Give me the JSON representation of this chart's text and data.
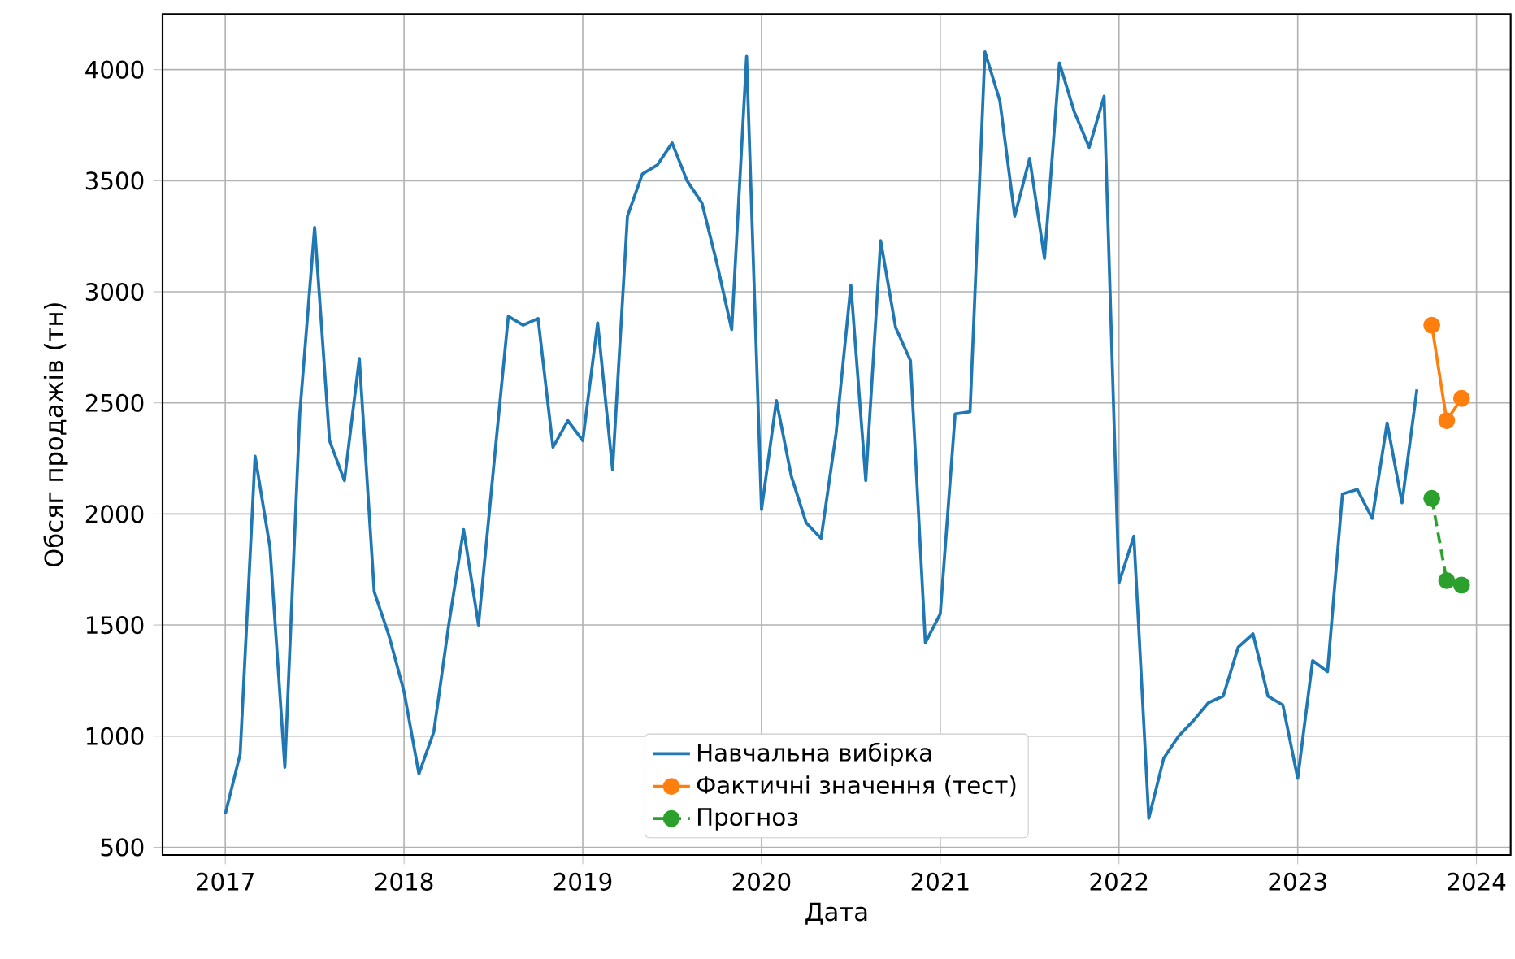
{
  "chart_data": {
    "type": "line",
    "xlabel": "Дата",
    "ylabel": "Обсяг продажів (тн)",
    "xlim": [
      "2016-08-25",
      "2024-03-10"
    ],
    "ylim": [
      465,
      4250
    ],
    "xticks": [
      "2017",
      "2018",
      "2019",
      "2020",
      "2021",
      "2022",
      "2023",
      "2024"
    ],
    "yticks": [
      500,
      1000,
      1500,
      2000,
      2500,
      3000,
      3500,
      4000
    ],
    "grid": true,
    "legend": "bottom",
    "series": [
      {
        "name": "Навчальна вибірка",
        "color": "#1f77b4",
        "marker": "none",
        "line_style": "solid",
        "x": [
          "2017-01",
          "2017-02",
          "2017-03",
          "2017-04",
          "2017-05",
          "2017-06",
          "2017-07",
          "2017-08",
          "2017-09",
          "2017-10",
          "2017-11",
          "2017-12",
          "2018-01",
          "2018-02",
          "2018-03",
          "2018-04",
          "2018-05",
          "2018-06",
          "2018-07",
          "2018-08",
          "2018-09",
          "2018-10",
          "2018-11",
          "2018-12",
          "2019-01",
          "2019-02",
          "2019-03",
          "2019-04",
          "2019-05",
          "2019-06",
          "2019-07",
          "2019-08",
          "2019-09",
          "2019-10",
          "2019-11",
          "2019-12",
          "2020-01",
          "2020-02",
          "2020-03",
          "2020-04",
          "2020-05",
          "2020-06",
          "2020-07",
          "2020-08",
          "2020-09",
          "2020-10",
          "2020-11",
          "2020-12",
          "2021-01",
          "2021-02",
          "2021-03",
          "2021-04",
          "2021-05",
          "2021-06",
          "2021-07",
          "2021-08",
          "2021-09",
          "2021-10",
          "2021-11",
          "2021-12",
          "2022-01",
          "2022-02",
          "2022-03",
          "2022-04",
          "2022-05",
          "2022-06",
          "2022-07",
          "2022-08",
          "2022-09",
          "2022-10",
          "2022-11",
          "2022-12",
          "2023-01",
          "2023-02",
          "2023-03",
          "2023-04",
          "2023-05",
          "2023-06",
          "2023-07",
          "2023-08",
          "2023-09"
        ],
        "values": [
          650,
          920,
          2260,
          1850,
          860,
          2450,
          3290,
          2330,
          2150,
          2700,
          1650,
          1450,
          1200,
          830,
          1020,
          1500,
          1930,
          1500,
          2200,
          2890,
          2850,
          2880,
          2300,
          2420,
          2330,
          2860,
          2200,
          3340,
          3530,
          3570,
          3670,
          3500,
          3400,
          3130,
          2830,
          4060,
          2020,
          2510,
          2170,
          1960,
          1890,
          2360,
          3030,
          2150,
          3230,
          2840,
          2690,
          1420,
          1550,
          2450,
          2460,
          4080,
          3860,
          3340,
          3600,
          3150,
          4030,
          3810,
          3650,
          3880,
          1690,
          1900,
          630,
          900,
          1000,
          1070,
          1150,
          1180,
          1400,
          1460,
          1180,
          1140,
          810,
          1340,
          1290,
          2090,
          2110,
          1980,
          2410,
          2050,
          2560
        ]
      },
      {
        "name": "Фактичні значення (тест)",
        "color": "#ff7f0e",
        "marker": "circle",
        "line_style": "solid",
        "x": [
          "2023-10",
          "2023-11",
          "2023-12"
        ],
        "values": [
          2850,
          2420,
          2520
        ]
      },
      {
        "name": "Прогноз",
        "color": "#2ca02c",
        "marker": "circle",
        "line_style": "dashed",
        "x": [
          "2023-10",
          "2023-11",
          "2023-12"
        ],
        "values": [
          2070,
          1700,
          1680
        ]
      }
    ]
  }
}
